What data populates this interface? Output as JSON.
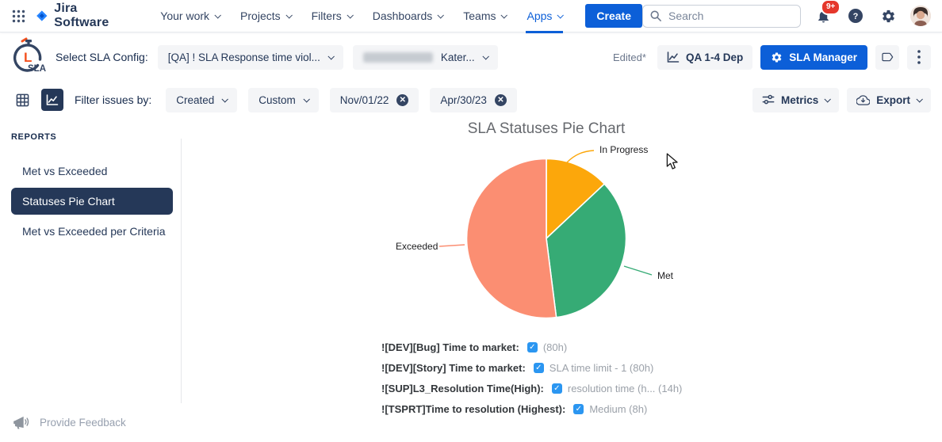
{
  "topnav": {
    "product": "Jira Software",
    "items": [
      {
        "label": "Your work",
        "active": false
      },
      {
        "label": "Projects",
        "active": false
      },
      {
        "label": "Filters",
        "active": false
      },
      {
        "label": "Dashboards",
        "active": false
      },
      {
        "label": "Teams",
        "active": false
      },
      {
        "label": "Apps",
        "active": true
      }
    ],
    "create_label": "Create",
    "search_placeholder": "Search",
    "notification_badge": "9+"
  },
  "config_bar": {
    "logo_l": "L",
    "logo_sla": "SLA",
    "select_label": "Select SLA Config:",
    "config_dropdown_value": "[QA] ! SLA Response time viol...",
    "user_dropdown_value": "Kater...",
    "edited": "Edited*",
    "dashboard_button": "QA 1-4 Dep",
    "manager_button": "SLA Manager"
  },
  "filter_bar": {
    "label": "Filter issues by:",
    "field_dropdown_value": "Created",
    "range_dropdown_value": "Custom",
    "date_from": "Nov/01/22",
    "date_to": "Apr/30/23",
    "metrics_button": "Metrics",
    "export_button": "Export"
  },
  "sidebar": {
    "heading": "REPORTS",
    "items": [
      {
        "label": "Met vs Exceeded",
        "active": false
      },
      {
        "label": "Statuses Pie Chart",
        "active": true
      },
      {
        "label": "Met vs Exceeded per Criteria",
        "active": false
      }
    ],
    "feedback_label": "Provide Feedback"
  },
  "chart_data": {
    "type": "pie",
    "title": "SLA Statuses Pie Chart",
    "slices": [
      {
        "label": "In Progress",
        "value": 13,
        "color": "#FCA70B"
      },
      {
        "label": "Met",
        "value": 35,
        "color": "#36AB75"
      },
      {
        "label": "Exceeded",
        "value": 52,
        "color": "#FB8E72"
      }
    ],
    "start_angle": "top",
    "direction": "clockwise",
    "values_note": "percent of circle estimated from slice angles; no numeric labels shown",
    "legend_position": "outside leader-line labels"
  },
  "sla_rows": [
    {
      "label": "![DEV][Bug] Time to market:",
      "checked": true,
      "value": "(80h)"
    },
    {
      "label": "![DEV][Story] Time to market:",
      "checked": true,
      "value": "SLA time limit - 1 (80h)"
    },
    {
      "label": "![SUP]L3_Resolution Time(High):",
      "checked": true,
      "value": "resolution time (h... (14h)"
    },
    {
      "label": "![TSPRT]Time to resolution (Highest):",
      "checked": true,
      "value": "Medium (8h)"
    }
  ],
  "colors": {
    "accent_blue": "#0C5FD8",
    "navy": "#344563",
    "navy_dark": "#253858",
    "chip_bg": "#F4F5F7",
    "badge_red": "#E5372B",
    "logo_orange": "#F4511E"
  }
}
